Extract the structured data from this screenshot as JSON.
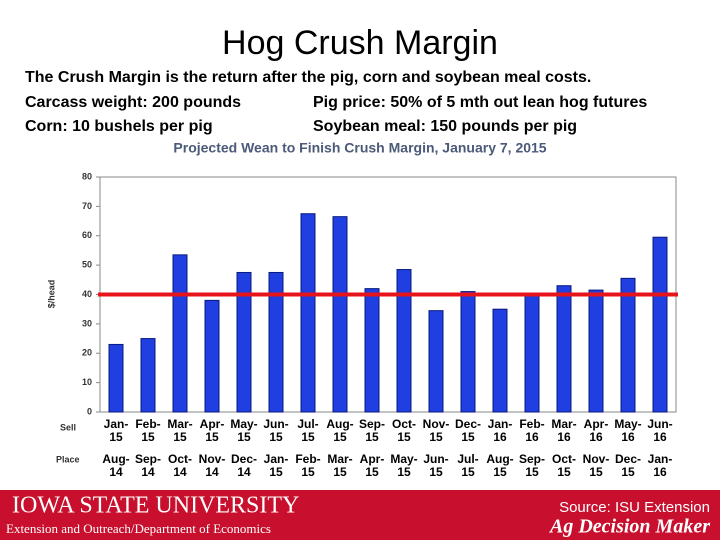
{
  "header": {
    "title": "Hog Crush Margin",
    "lines": [
      [
        "The Crush Margin is the return after the pig, corn and soybean meal costs."
      ],
      [
        "Carcass weight:  200 pounds",
        "Pig price:  50% of 5 mth out lean hog futures"
      ],
      [
        "Corn:  10 bushels per pig",
        "Soybean meal:  150 pounds per pig"
      ]
    ]
  },
  "chart_data": {
    "type": "bar",
    "title": "Projected Wean to Finish Crush Margin, January 7, 2015",
    "ylabel": "$/head",
    "row_labels": [
      "Sell",
      "Place"
    ],
    "categories": [
      "Jan-15",
      "Feb-15",
      "Mar-15",
      "Apr-15",
      "May-15",
      "Jun-15",
      "Jul-15",
      "Aug-15",
      "Sep-15",
      "Oct-15",
      "Nov-15",
      "Dec-15",
      "Jan-16",
      "Feb-16",
      "Mar-16",
      "Apr-16",
      "May-16",
      "Jun-16"
    ],
    "place": [
      "Aug-14",
      "Sep-14",
      "Oct-14",
      "Nov-14",
      "Dec-14",
      "Jan-15",
      "Feb-15",
      "Mar-15",
      "Apr-15",
      "May-15",
      "Jun-15",
      "Jul-15",
      "Aug-15",
      "Sep-15",
      "Oct-15",
      "Nov-15",
      "Dec-15",
      "Jan-16"
    ],
    "values": [
      23,
      25,
      53.5,
      38,
      47.5,
      47.5,
      67.5,
      66.5,
      42,
      48.5,
      34.5,
      41,
      35,
      40,
      43,
      41.5,
      45.5,
      59.5
    ],
    "color": "#1f3fe0",
    "reference_line": 40,
    "reference_color": "#e8141b",
    "ylim": [
      0,
      80
    ],
    "yticks": [
      0,
      10,
      20,
      30,
      40,
      50,
      60,
      70,
      80
    ]
  },
  "footer": {
    "university": "IOWA STATE UNIVERSITY",
    "department": "Extension and Outreach/Department of Economics",
    "source": "Source: ISU Extension",
    "brand": "Ag Decision Maker"
  }
}
